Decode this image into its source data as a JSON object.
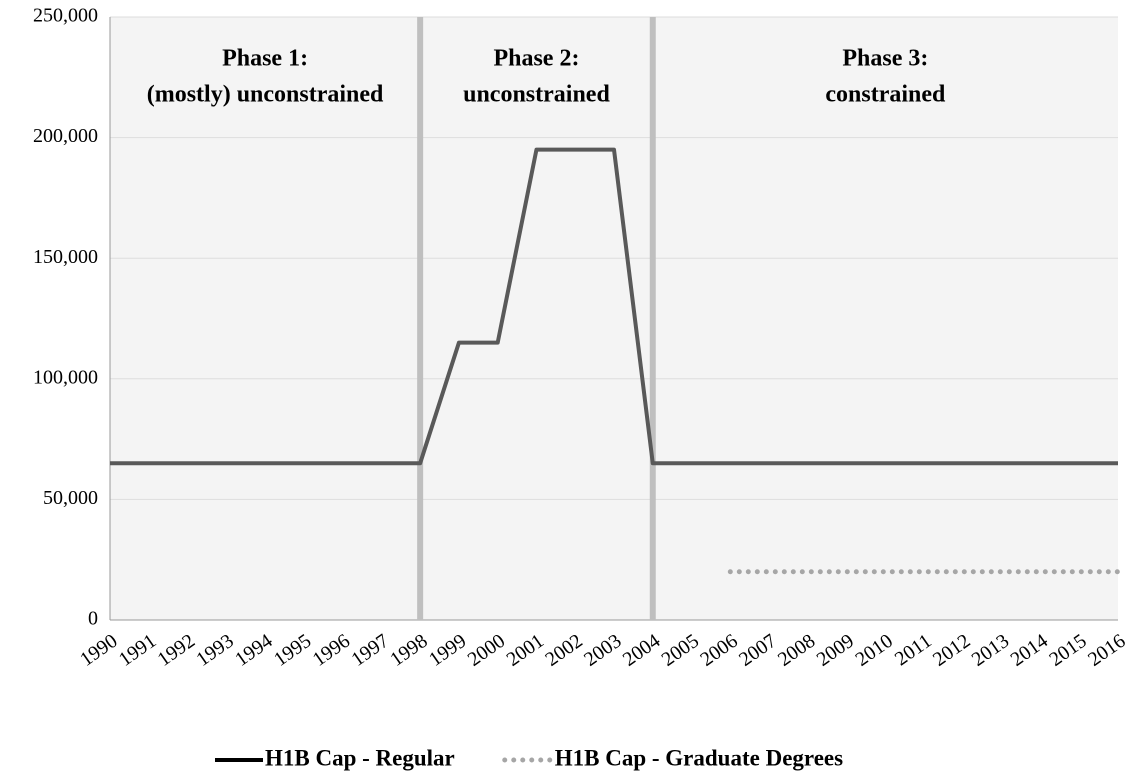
{
  "chart_data": {
    "type": "line",
    "categories": [
      "1990",
      "1991",
      "1992",
      "1993",
      "1994",
      "1995",
      "1996",
      "1997",
      "1998",
      "1999",
      "2000",
      "2001",
      "2002",
      "2003",
      "2004",
      "2005",
      "2006",
      "2007",
      "2008",
      "2009",
      "2010",
      "2011",
      "2012",
      "2013",
      "2014",
      "2015",
      "2016"
    ],
    "series": [
      {
        "name": "H1B Cap - Regular",
        "color": "#595959",
        "style": "solid",
        "values": [
          65000,
          65000,
          65000,
          65000,
          65000,
          65000,
          65000,
          65000,
          65000,
          115000,
          115000,
          195000,
          195000,
          195000,
          65000,
          65000,
          65000,
          65000,
          65000,
          65000,
          65000,
          65000,
          65000,
          65000,
          65000,
          65000,
          65000
        ]
      },
      {
        "name": "H1B Cap - Graduate Degrees",
        "color": "#a6a6a6",
        "style": "dotted",
        "values": [
          null,
          null,
          null,
          null,
          null,
          null,
          null,
          null,
          null,
          null,
          null,
          null,
          null,
          null,
          null,
          null,
          20000,
          20000,
          20000,
          20000,
          20000,
          20000,
          20000,
          20000,
          20000,
          20000,
          20000
        ]
      }
    ],
    "ylim": [
      0,
      250000
    ],
    "yticks": [
      0,
      {
        "value": 50000,
        "label": "50,000"
      },
      {
        "value": 100000,
        "label": "100,000"
      },
      {
        "value": 150000,
        "label": "150,000"
      },
      {
        "value": 200000,
        "label": "200,000"
      },
      {
        "value": 250000,
        "label": "250,000"
      }
    ],
    "grid": true,
    "phase_boundaries": [
      "1998",
      "2004"
    ],
    "phases": [
      {
        "title": "Phase 1:",
        "subtitle": "(mostly) unconstrained"
      },
      {
        "title": "Phase 2:",
        "subtitle": "unconstrained"
      },
      {
        "title": "Phase 3:",
        "subtitle": "constrained"
      }
    ],
    "legend": "bottom"
  }
}
